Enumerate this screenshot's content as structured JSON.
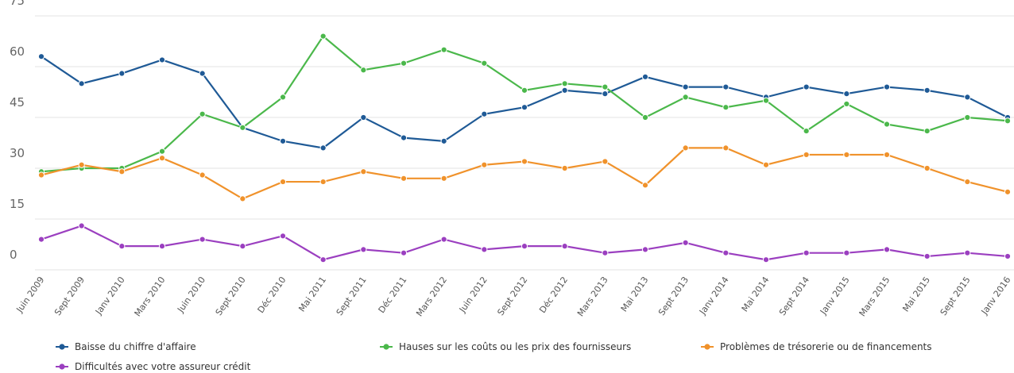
{
  "chart_data": {
    "type": "line",
    "categories": [
      "Juin 2009",
      "Sept 2009",
      "Janv 2010",
      "Mars 2010",
      "Juin 2010",
      "Sept 2010",
      "Déc 2010",
      "Mai 2011",
      "Sept 2011",
      "Déc 2011",
      "Mars 2012",
      "Juin 2012",
      "Sept 2012",
      "Déc 2012",
      "Mars 2013",
      "Mai 2013",
      "Sept 2013",
      "Janv 2014",
      "Mai 2014",
      "Sept 2014",
      "Janv 2015",
      "Mars 2015",
      "Mai 2015",
      "Sept 2015",
      "Janv 2016"
    ],
    "series": [
      {
        "name": "Baisse du chiffre d'affaire",
        "color": "#1f5a96",
        "values": [
          63,
          55,
          58,
          62,
          58,
          42,
          38,
          36,
          45,
          39,
          38,
          46,
          48,
          53,
          52,
          57,
          54,
          54,
          51,
          54,
          52,
          54,
          53,
          51,
          45
        ]
      },
      {
        "name": "Hauses sur les coûts ou les prix des fournisseurs",
        "color": "#4bb84b",
        "values": [
          29,
          30,
          30,
          35,
          46,
          42,
          51,
          69,
          59,
          61,
          65,
          61,
          53,
          55,
          54,
          45,
          51,
          48,
          50,
          41,
          49,
          43,
          41,
          45,
          44
        ]
      },
      {
        "name": "Problèmes de trésorerie ou de financements",
        "color": "#f0922b",
        "values": [
          28,
          31,
          29,
          33,
          28,
          21,
          26,
          26,
          29,
          27,
          27,
          31,
          32,
          30,
          32,
          25,
          36,
          36,
          31,
          34,
          34,
          34,
          30,
          26,
          23
        ]
      },
      {
        "name": "Difficultés avec votre assureur crédit",
        "color": "#9b3fc0",
        "values": [
          9,
          13,
          7,
          7,
          9,
          7,
          10,
          3,
          6,
          5,
          9,
          6,
          7,
          7,
          5,
          6,
          8,
          5,
          3,
          5,
          5,
          6,
          4,
          5,
          4
        ]
      }
    ],
    "ylim": [
      0,
      75
    ],
    "yticks": [
      0,
      15,
      30,
      45,
      60,
      75
    ],
    "grid": true
  }
}
